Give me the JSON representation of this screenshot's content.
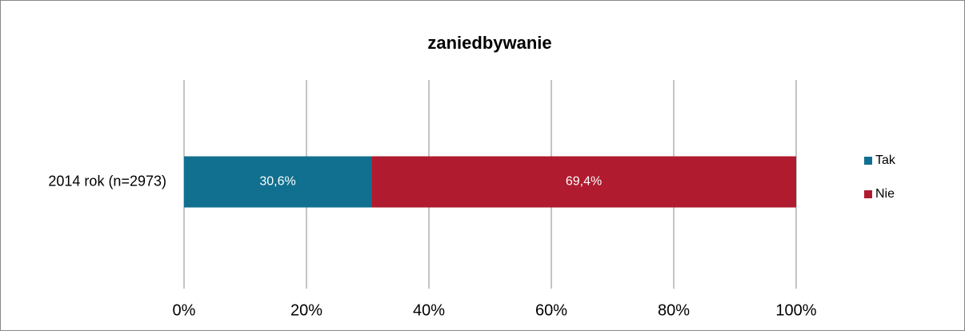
{
  "chart_data": {
    "type": "bar",
    "orientation": "horizontal",
    "stacked": true,
    "title": "zaniedbywanie",
    "categories": [
      "2014 rok (n=2973)"
    ],
    "series": [
      {
        "name": "Tak",
        "color": "#11708f",
        "values": [
          30.6
        ],
        "value_labels": [
          "30,6%"
        ]
      },
      {
        "name": "Nie",
        "color": "#b01b2f",
        "values": [
          69.4
        ],
        "value_labels": [
          "69,4%"
        ]
      }
    ],
    "xlim": [
      0,
      100
    ],
    "xticks": [
      {
        "value": 0,
        "label": "0%"
      },
      {
        "value": 20,
        "label": "20%"
      },
      {
        "value": 40,
        "label": "40%"
      },
      {
        "value": 60,
        "label": "60%"
      },
      {
        "value": 80,
        "label": "80%"
      },
      {
        "value": 100,
        "label": "100%"
      }
    ],
    "grid": true,
    "legend": "right"
  }
}
